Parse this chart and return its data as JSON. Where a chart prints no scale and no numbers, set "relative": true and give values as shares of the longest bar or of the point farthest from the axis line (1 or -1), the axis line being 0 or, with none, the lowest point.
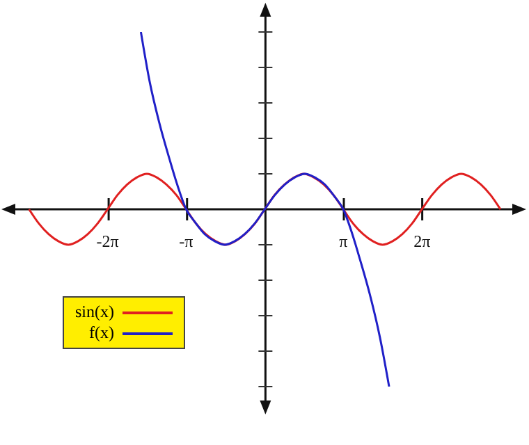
{
  "chart_data": {
    "type": "line",
    "relative": true,
    "xlim": [
      -10.47,
      10.45
    ],
    "xticks": [
      {
        "value": -6.283,
        "label": "-2π"
      },
      {
        "value": -3.1416,
        "label": "-π"
      },
      {
        "value": 3.1416,
        "label": "π"
      },
      {
        "value": 6.283,
        "label": "2π"
      }
    ],
    "legend": "bottom left",
    "line_style": "solid",
    "series": [
      {
        "name": "sin(x)",
        "color": "#e02020",
        "x": [
          -9.42,
          -9.03,
          -8.64,
          -8.25,
          -7.85,
          -7.46,
          -7.07,
          -6.68,
          -6.28,
          -5.89,
          -5.5,
          -5.11,
          -4.71,
          -4.32,
          -3.93,
          -3.53,
          -3.14,
          -2.75,
          -2.36,
          -1.96,
          -1.57,
          -1.18,
          -0.79,
          -0.39,
          0,
          0.39,
          0.79,
          1.18,
          1.57,
          1.96,
          2.36,
          2.75,
          3.14,
          3.53,
          3.93,
          4.32,
          4.71,
          5.11,
          5.5,
          5.89,
          6.28,
          6.68,
          7.07,
          7.46,
          7.85,
          8.25,
          8.64,
          9.03,
          9.42
        ],
        "values": [
          0,
          -0.08,
          -0.14,
          -0.18,
          -0.2,
          -0.18,
          -0.14,
          -0.08,
          0,
          0.08,
          0.14,
          0.18,
          0.2,
          0.18,
          0.14,
          0.08,
          0,
          -0.08,
          -0.14,
          -0.18,
          -0.2,
          -0.18,
          -0.14,
          -0.08,
          0,
          0.08,
          0.14,
          0.18,
          0.2,
          0.18,
          0.14,
          0.08,
          0,
          -0.08,
          -0.14,
          -0.18,
          -0.2,
          -0.18,
          -0.14,
          -0.08,
          0,
          0.08,
          0.14,
          0.18,
          0.2,
          0.18,
          0.14,
          0.08,
          0
        ]
      },
      {
        "name": "f(x)",
        "color": "#2020c8",
        "x": [
          -4.95,
          -4.6,
          -4.2,
          -3.8,
          -3.5,
          -3.14,
          -2.8,
          -2.4,
          -2.0,
          -1.6,
          -1.2,
          -0.8,
          -0.4,
          0,
          0.4,
          0.8,
          1.2,
          1.6,
          2.0,
          2.4,
          2.8,
          3.14,
          3.5,
          3.8,
          4.2,
          4.6,
          4.97
        ],
        "values": [
          1,
          0.72,
          0.48,
          0.28,
          0.14,
          0,
          -0.07,
          -0.14,
          -0.18,
          -0.2,
          -0.18,
          -0.14,
          -0.08,
          0,
          0.08,
          0.14,
          0.18,
          0.2,
          0.18,
          0.14,
          0.07,
          0,
          -0.14,
          -0.28,
          -0.48,
          -0.72,
          -1
        ]
      }
    ]
  }
}
